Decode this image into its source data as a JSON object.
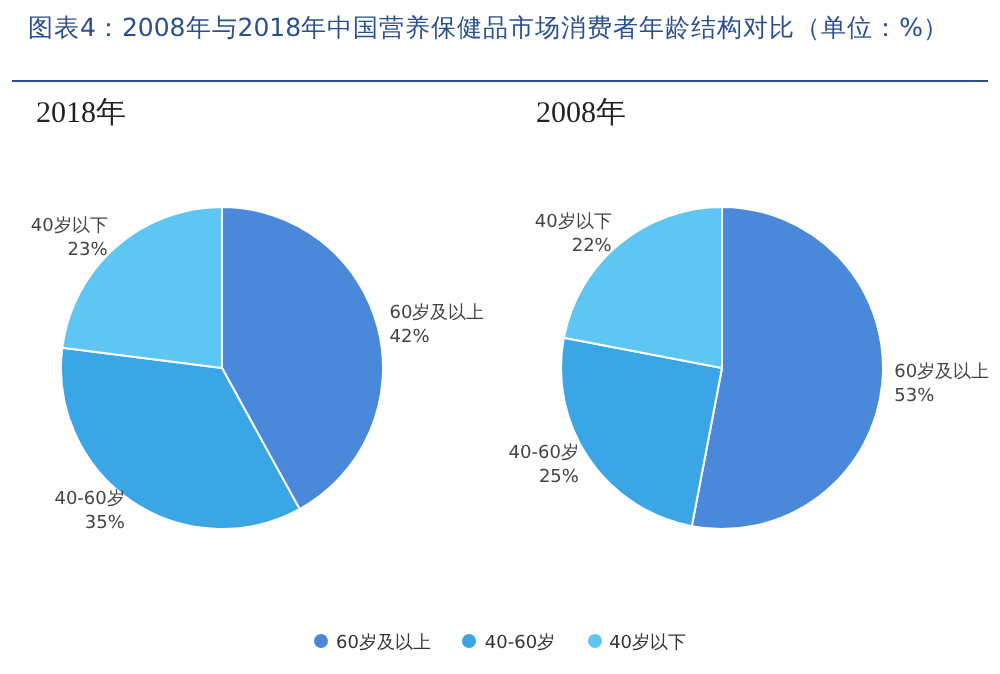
{
  "chart_data": [
    {
      "type": "pie",
      "title": "图表4：2008年与2018年中国营养保健品市场消费者年龄结构对比（单位：%）",
      "subtitle": "2018年",
      "categories": [
        "60岁及以上",
        "40-60岁",
        "40岁以下"
      ],
      "values": [
        42,
        35,
        23
      ],
      "value_labels": [
        "42%",
        "35%",
        "23%"
      ],
      "colors": [
        "#4a88da",
        "#3aa6e6",
        "#5ec6f2"
      ],
      "legend": "bottom"
    },
    {
      "type": "pie",
      "title": "2008年",
      "categories": [
        "60岁及以上",
        "40-60岁",
        "40岁以下"
      ],
      "values": [
        53,
        25,
        22
      ],
      "value_labels": [
        "53%",
        "25%",
        "22%"
      ],
      "colors": [
        "#4a88da",
        "#3aa6e6",
        "#5ec6f2"
      ]
    }
  ]
}
